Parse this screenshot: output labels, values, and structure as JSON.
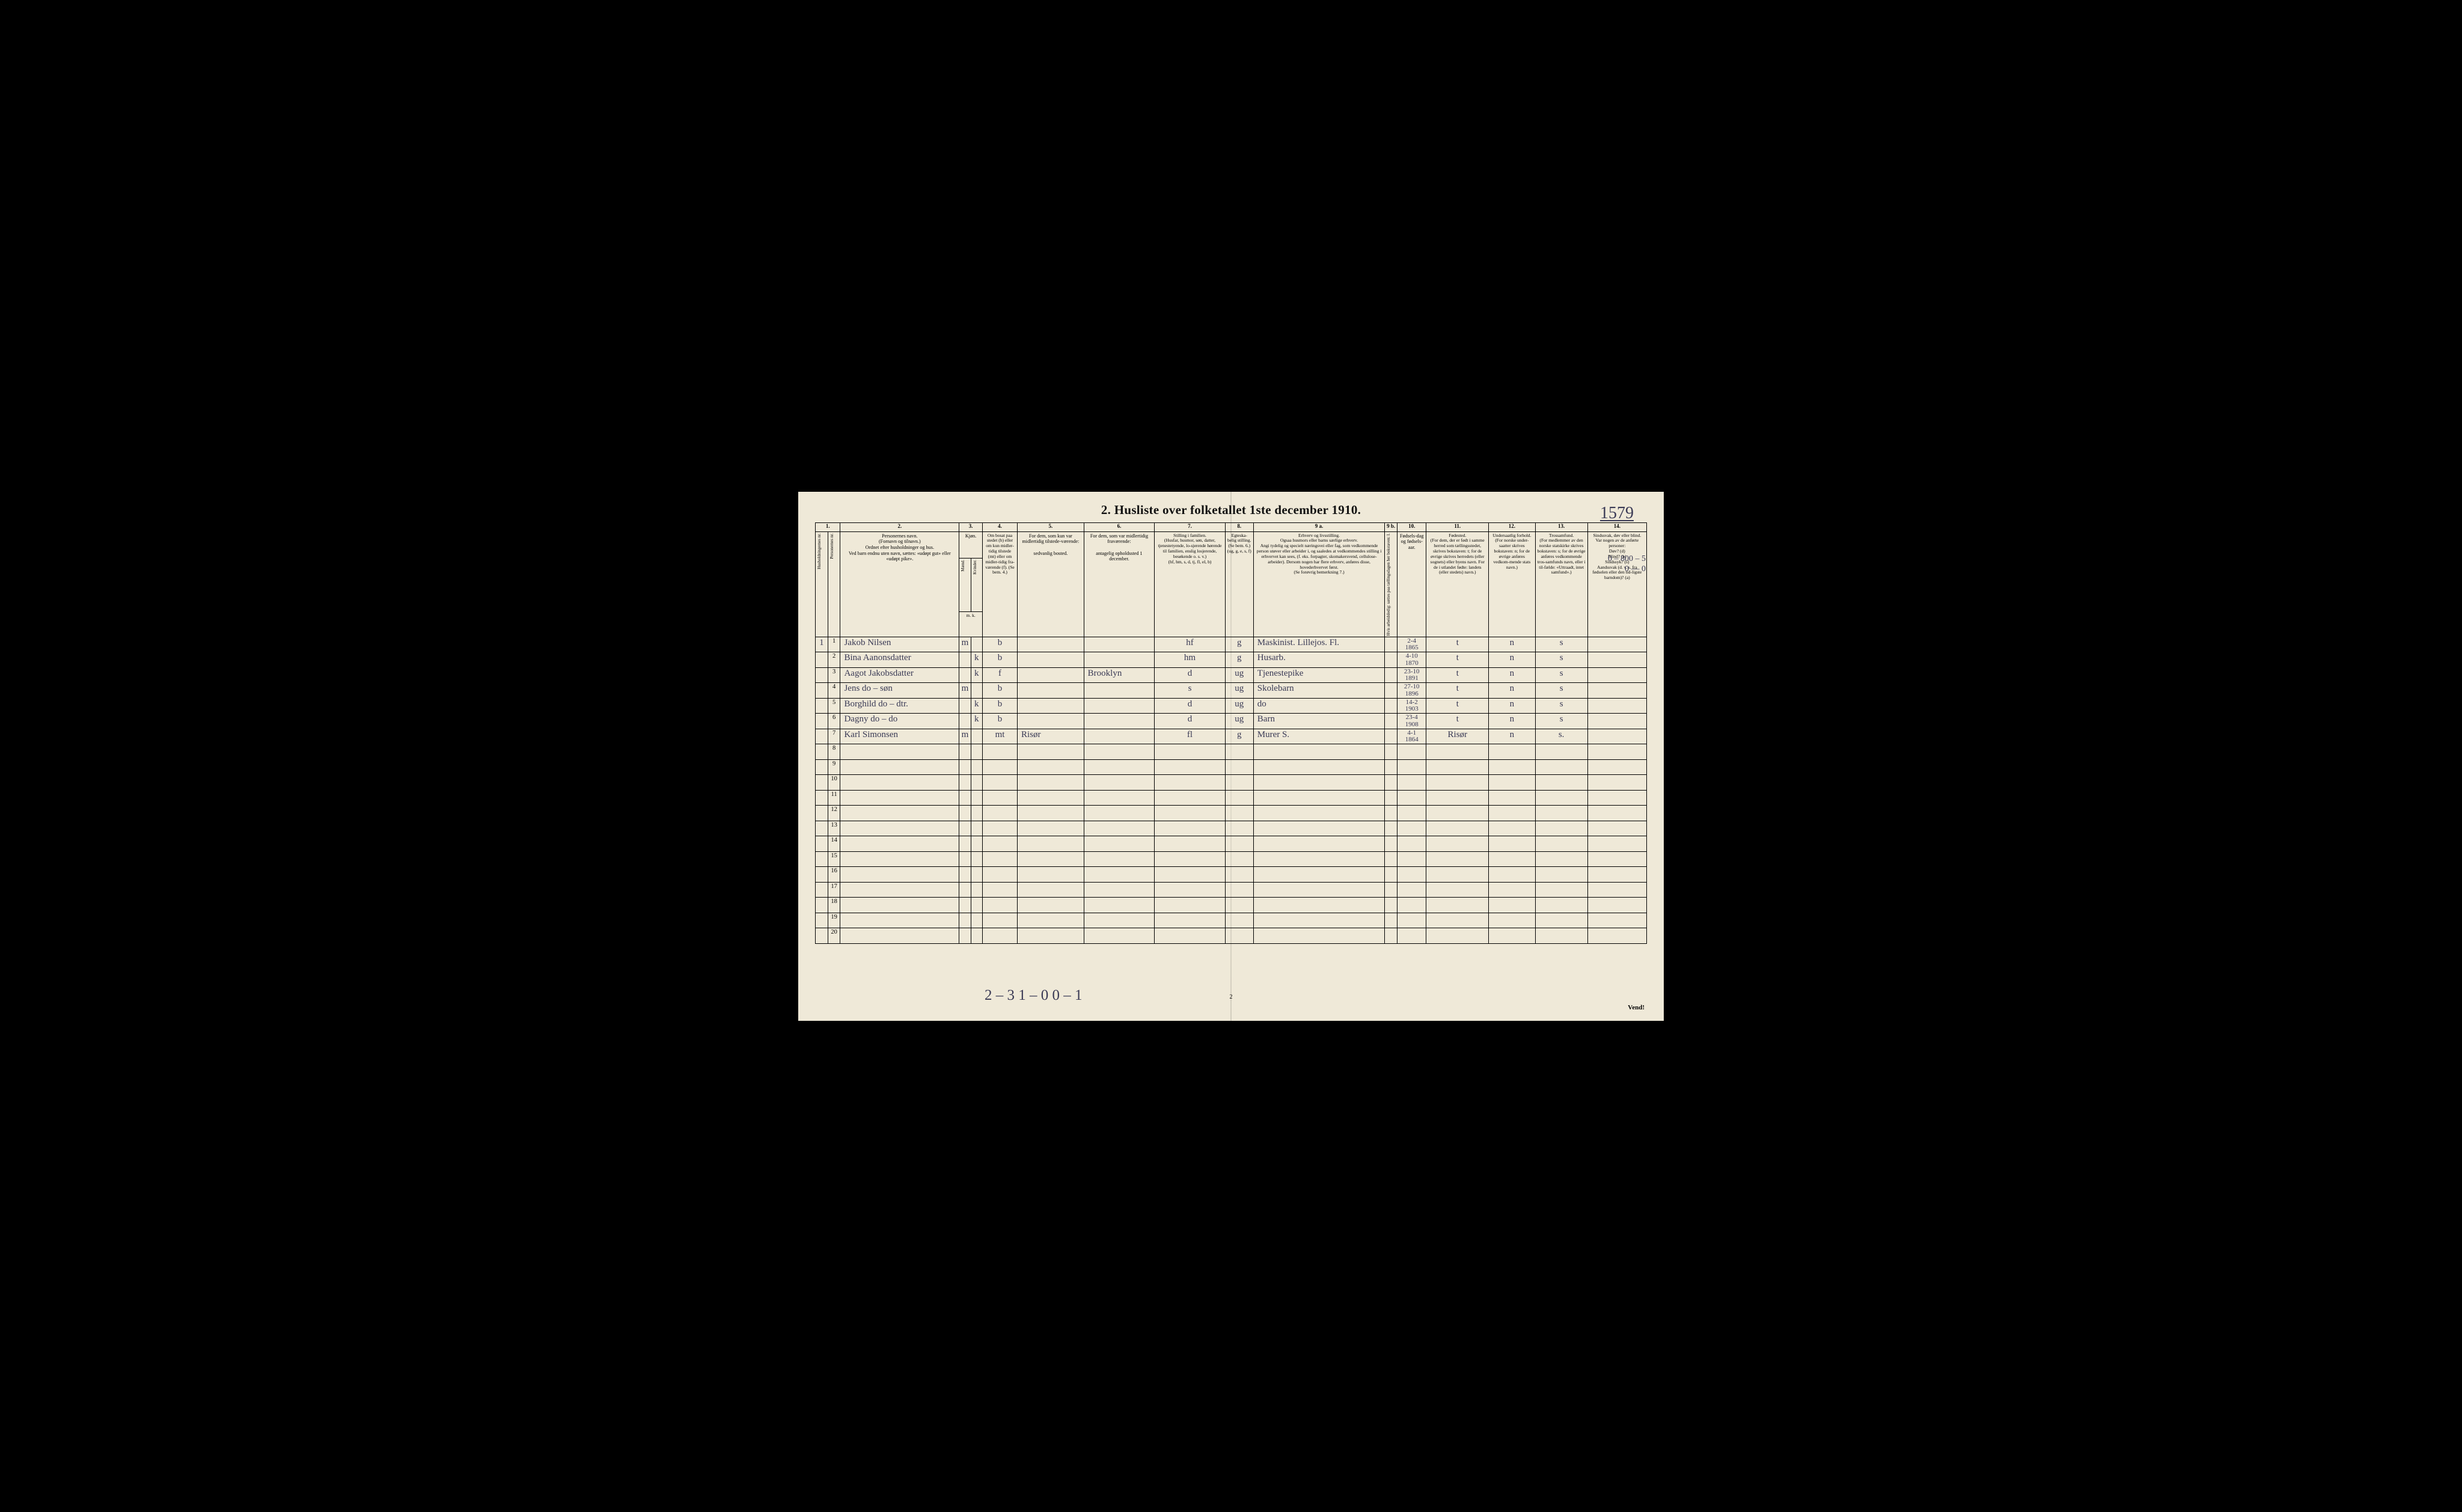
{
  "title": "2.  Husliste over folketallet 1ste december 1910.",
  "hand_page_number": "1579",
  "corner_annotation": [
    "0 – 800 – 5",
    "0 — 0"
  ],
  "bottom_annotation": "2 – 3    1 – 0    0 – 1",
  "bottom_page_num": "2",
  "vend": "Vend!",
  "columns": {
    "nums": [
      "1.",
      "2.",
      "3.",
      "4.",
      "5.",
      "6.",
      "7.",
      "8.",
      "9 a.",
      "9 b.",
      "10.",
      "11.",
      "12.",
      "13.",
      "14."
    ],
    "h1a": "Husholdningernes nr.",
    "h1b": "Personernes nr.",
    "h2": "Personernes navn.\n(Fornavn og tilnavn.)\nOrdnet efter husholdninger og hus.\nVed barn endnu uten navn, sættes: «udøpt gut» eller «udøpt pike».",
    "h3": "Kjøn.",
    "h3a": "Mænd.",
    "h3b": "Kvinder.",
    "h3foot": "m.   k.",
    "h4": "Om bosat paa stedet (b) eller om kun midler-tidig tilstede (mt) eller om midler-tidig fra-værende (f). (Se bem. 4.)",
    "h5": "For dem, som kun var midlertidig tilstede-værende:\n\nsedvanlig bosted.",
    "h6": "For dem, som var midlertidig fraværende:\n\nantagelig opholdssted 1 december.",
    "h7": "Stilling i familien.\n(Husfar, husmor, søn, datter, tjenestetyende, lo-sjerende hørende til familien, enslig losjerende, besøkende o. s. v.)\n(hf, hm, s, d, tj, fl, el, b)",
    "h8": "Egteska-belig stilling.\n(Se bem. 6.)\n(ug, g, e, s, f)",
    "h9a": "Erhverv og livsstilling.\nOgsaa husmors eller barns særlige erhverv.\nAngi tydelig og specielt næringsvei eller fag, som vedkommende person utøver eller arbeider i, og saaledes at vedkommendes stilling i erhvervet kan sees, (f. eks. forpagter, skomakersvend, cellulose-arbeider). Dersom nogen har flere erhverv, anføres disse, hovederhvervet først.\n(Se forøvrig bemerkning 7.)",
    "h9b": "Hvis arbeidsledig: sættes paa tællingsdagen her bokstaven: l.",
    "h10": "Fødsels-dag og fødsels-aar.",
    "h11": "Fødested.\n(For dem, der er født i samme herred som tællingsstedet, skrives bokstaven: t; for de øvrige skrives herredets (eller sognets) eller byens navn. For de i utlandet fødte: landets (eller stedets) navn.)",
    "h12": "Undersaatlig forhold.\n(For norske under-saatter skrives bokstaven: n; for de øvrige anføres vedkom-mende stats navn.)",
    "h13": "Trossamfund.\n(For medlemmer av den norske statskirke skrives bokstaven: s; for de øvrige anføres vedkommende tros-samfunds navn, eller i til-fælde: «Uttraadt, intet samfund».)",
    "h14": "Sindssvak, døv eller blind.\nVar nogen av de anførte personer:\nDøv?     (d)\nBlind?   (b)\nSindssyk? (s)\nAandssvak (d. v. s. fra fødselen eller den tid-ligste barndom)? (a)"
  },
  "rows": [
    {
      "hus": "1",
      "nr": "1",
      "name": "Jakob Nilsen",
      "m": "m",
      "k": "",
      "c4": "b",
      "c5": "",
      "c6": "",
      "c7": "hf",
      "c8": "g",
      "c9a": "Maskinist. Lillejos. Fl.",
      "c10": "2-4\n1865",
      "c11": "t",
      "c12": "n",
      "c13": "s",
      "c14": ""
    },
    {
      "hus": "",
      "nr": "2",
      "name": "Bina Aanonsdatter",
      "m": "",
      "k": "k",
      "c4": "b",
      "c5": "",
      "c6": "",
      "c7": "hm",
      "c8": "g",
      "c9a": "Husarb.",
      "c10": "4-10\n1870",
      "c11": "t",
      "c12": "n",
      "c13": "s",
      "c14": ""
    },
    {
      "hus": "",
      "nr": "3",
      "name": "Aagot Jakobsdatter",
      "m": "",
      "k": "k",
      "c4": "f",
      "c5": "",
      "c6": "Brooklyn",
      "c7": "d",
      "c8": "ug",
      "c9a": "Tjenestepike",
      "c10": "23-10\n1891",
      "c11": "t",
      "c12": "n",
      "c13": "s",
      "c14": ""
    },
    {
      "hus": "",
      "nr": "4",
      "name": "Jens      do – søn",
      "m": "m",
      "k": "",
      "c4": "b",
      "c5": "",
      "c6": "",
      "c7": "s",
      "c8": "ug",
      "c9a": "Skolebarn",
      "c10": "27-10\n1896",
      "c11": "t",
      "c12": "n",
      "c13": "s",
      "c14": ""
    },
    {
      "hus": "",
      "nr": "5",
      "name": "Borghild  do – dtr.",
      "m": "",
      "k": "k",
      "c4": "b",
      "c5": "",
      "c6": "",
      "c7": "d",
      "c8": "ug",
      "c9a": "do",
      "c10": "14-2\n1903",
      "c11": "t",
      "c12": "n",
      "c13": "s",
      "c14": ""
    },
    {
      "hus": "",
      "nr": "6",
      "name": "Dagny    do – do",
      "m": "",
      "k": "k",
      "c4": "b",
      "c5": "",
      "c6": "",
      "c7": "d",
      "c8": "ug",
      "c9a": "Barn",
      "c10": "23-4\n1908",
      "c11": "t",
      "c12": "n",
      "c13": "s",
      "c14": ""
    },
    {
      "hus": "",
      "nr": "7",
      "name": "Karl Simonsen",
      "m": "m",
      "k": "",
      "c4": "mt",
      "c5": "Risør",
      "c6": "",
      "c7": "fl",
      "c8": "g",
      "c9a": "Murer        S.",
      "c10": "4-1\n1864",
      "c11": "Risør",
      "c12": "n",
      "c13": "s.",
      "c14": ""
    }
  ],
  "empty_row_nums": [
    "8",
    "9",
    "10",
    "11",
    "12",
    "13",
    "14",
    "15",
    "16",
    "17",
    "18",
    "19",
    "20"
  ],
  "colors": {
    "paper": "#efe9d8",
    "ink": "#111111",
    "hand": "#3a3a55",
    "rule": "#000000",
    "bg": "#000000"
  }
}
